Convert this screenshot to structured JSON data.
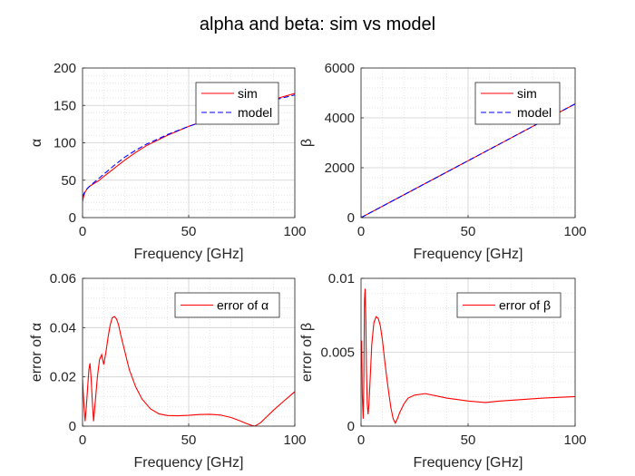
{
  "figure_title": "alpha and beta: sim vs model",
  "colors": {
    "sim": "#ff0000",
    "model": "#0000ff",
    "error": "#ff0000",
    "grid": "#dcdcdc"
  },
  "chart_data": [
    {
      "type": "line",
      "id": "alpha",
      "xlabel": "Frequency [GHz]",
      "ylabel": "α",
      "xlim": [
        0,
        100
      ],
      "ylim": [
        0,
        200
      ],
      "xticks": [
        0,
        50,
        100
      ],
      "yticks": [
        0,
        50,
        100,
        150,
        200
      ],
      "grid": "on (major and minor)",
      "legend": "top-right",
      "series": [
        {
          "name": "sim",
          "style": "solid",
          "x": [
            0,
            0.5,
            1,
            2,
            3,
            5,
            7.5,
            10,
            15,
            20,
            25,
            30,
            40,
            50,
            60,
            70,
            80,
            90,
            100
          ],
          "y": [
            22,
            28,
            33,
            38,
            41,
            45,
            49,
            55,
            66,
            77,
            87,
            96,
            110,
            122,
            132,
            141,
            150,
            158,
            166
          ]
        },
        {
          "name": "model",
          "style": "dashed",
          "x": [
            0,
            0.5,
            1,
            2,
            3,
            5,
            7.5,
            10,
            15,
            20,
            25,
            30,
            40,
            50,
            60,
            70,
            80,
            90,
            100
          ],
          "y": [
            28,
            31,
            34,
            38,
            41,
            46,
            52,
            58,
            70,
            81,
            90,
            98,
            111,
            122,
            131,
            140,
            149,
            157,
            164
          ]
        }
      ]
    },
    {
      "type": "line",
      "id": "beta",
      "xlabel": "Frequency [GHz]",
      "ylabel": "β",
      "xlim": [
        0,
        100
      ],
      "ylim": [
        0,
        6000
      ],
      "xticks": [
        0,
        50,
        100
      ],
      "yticks": [
        0,
        2000,
        4000,
        6000
      ],
      "grid": "on (major and minor)",
      "legend": "top-right",
      "series": [
        {
          "name": "sim",
          "style": "solid",
          "x": [
            0,
            25,
            50,
            75,
            100
          ],
          "y": [
            0,
            1140,
            2280,
            3420,
            4560
          ]
        },
        {
          "name": "model",
          "style": "dashed",
          "x": [
            0,
            25,
            50,
            75,
            100
          ],
          "y": [
            0,
            1140,
            2280,
            3420,
            4560
          ]
        }
      ]
    },
    {
      "type": "line",
      "id": "err-alpha",
      "xlabel": "Frequency [GHz]",
      "ylabel": "error of α",
      "xlim": [
        0,
        100
      ],
      "ylim": [
        0,
        0.06
      ],
      "xticks": [
        0,
        50,
        100
      ],
      "yticks": [
        0,
        0.02,
        0.04,
        0.06
      ],
      "grid": "on (major and minor)",
      "legend": "top-right",
      "series": [
        {
          "name": "error of α",
          "style": "solid",
          "x": [
            0,
            0.3,
            0.7,
            1.2,
            1.8,
            2.5,
            3,
            3.5,
            4,
            4.6,
            5.2,
            6,
            7,
            8,
            9,
            10,
            11,
            12,
            13,
            14,
            15,
            16,
            17,
            18,
            20,
            22,
            25,
            28,
            32,
            36,
            40,
            45,
            50,
            55,
            60,
            65,
            70,
            74,
            78,
            80,
            81,
            82,
            84,
            87,
            90,
            95,
            100
          ],
          "y": [
            0.019,
            0.014,
            0.008,
            0.002,
            0.008,
            0.017,
            0.023,
            0.0255,
            0.02,
            0.01,
            0.002,
            0.01,
            0.02,
            0.027,
            0.029,
            0.025,
            0.03,
            0.036,
            0.041,
            0.044,
            0.0445,
            0.0435,
            0.041,
            0.037,
            0.03,
            0.023,
            0.016,
            0.011,
            0.007,
            0.005,
            0.0043,
            0.0042,
            0.0044,
            0.0047,
            0.0048,
            0.0045,
            0.0035,
            0.0022,
            0.0008,
            0.0002,
            0,
            0.0004,
            0.0015,
            0.004,
            0.0065,
            0.0103,
            0.014
          ]
        }
      ]
    },
    {
      "type": "line",
      "id": "err-beta",
      "xlabel": "Frequency [GHz]",
      "ylabel": "error of β",
      "xlim": [
        0,
        100
      ],
      "ylim": [
        0,
        0.01
      ],
      "xticks": [
        0,
        50,
        100
      ],
      "yticks": [
        0,
        0.005,
        0.01
      ],
      "grid": "on (major and minor)",
      "legend": "top-right",
      "series": [
        {
          "name": "error of β",
          "style": "solid",
          "x": [
            0,
            0.3,
            0.6,
            1,
            1.3,
            1.6,
            1.9,
            2.2,
            2.5,
            2.9,
            3.3,
            3.7,
            4.2,
            5,
            6,
            7,
            8,
            9,
            10,
            11,
            12,
            13,
            14,
            15,
            16,
            17,
            18,
            20,
            22,
            25,
            30,
            35,
            40,
            50,
            58,
            65,
            75,
            85,
            100
          ],
          "y": [
            0.004,
            0.0058,
            0.002,
            0.0005,
            0.003,
            0.0085,
            0.0093,
            0.0075,
            0.004,
            0.0015,
            0.0008,
            0.0015,
            0.003,
            0.0055,
            0.007,
            0.0074,
            0.0073,
            0.0068,
            0.0058,
            0.0045,
            0.0033,
            0.0022,
            0.0012,
            0.0005,
            0.0002,
            0.0005,
            0.0009,
            0.0015,
            0.0019,
            0.0021,
            0.0022,
            0.00205,
            0.0019,
            0.0017,
            0.0016,
            0.0017,
            0.0018,
            0.0019,
            0.002
          ]
        }
      ]
    }
  ]
}
